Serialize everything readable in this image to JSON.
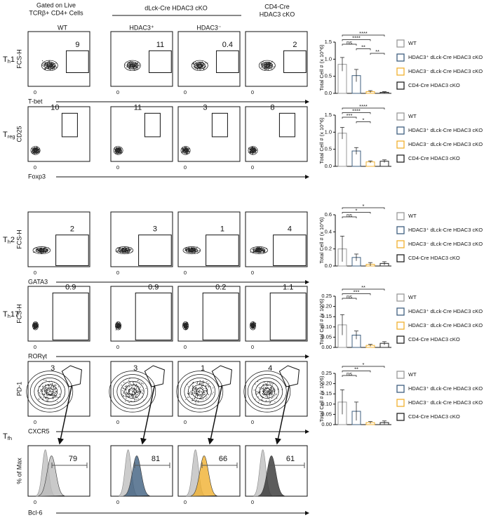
{
  "header": {
    "gated": [
      "Gated on Live",
      "TCRβ+ CD4+ Cells"
    ],
    "group": "dLck-Cre HDAC3 cKO",
    "columns": [
      "WT",
      "HDAC3⁺",
      "HDAC3⁻"
    ],
    "cd4": [
      "CD4-Cre",
      "HDAC3 cKO"
    ]
  },
  "zero_label": "0",
  "rows": [
    {
      "label": {
        "base": "T",
        "sub": "h",
        "suffix": "1"
      },
      "y_label": "FCS-H",
      "x_label": "T-bet",
      "gates": [
        9,
        11,
        0.4,
        2
      ]
    },
    {
      "label": {
        "base": "T",
        "sub": "reg"
      },
      "y_label": "CD25",
      "x_label": "Foxp3",
      "gates": [
        10,
        11,
        3,
        8
      ]
    },
    {
      "label": {
        "base": "T",
        "sub": "h",
        "suffix": "2"
      },
      "y_label": "FCS-H",
      "x_label": "GATA3",
      "gates": [
        2,
        3,
        1,
        4
      ]
    },
    {
      "label": {
        "base": "T",
        "sub": "h",
        "suffix": "17"
      },
      "y_label": "FCS-H",
      "x_label": "RORγt",
      "gates": [
        0.9,
        0.9,
        0.2,
        1.1
      ]
    },
    {
      "label": {
        "base": "T",
        "sub": "fh"
      },
      "y_label": "PD-1",
      "x_label": "CXCR5",
      "gates": [
        3,
        3,
        1,
        4
      ]
    }
  ],
  "histogram": {
    "y_label": "% of Max",
    "x_label": "Bcl-6",
    "gates": [
      79,
      81,
      66,
      61
    ]
  },
  "chart_data": [
    {
      "type": "bar",
      "y_label": "Total Cell # (x 10^6)",
      "categories": [
        "WT",
        "HDAC3⁺ dLck-Cre HDAC3 cKO",
        "HDAC3⁻ dLck-Cre HDAC3 cKO",
        "CD4-Cre HDAC3 cKO"
      ],
      "colors": [
        "#999999",
        "#3f5f7f",
        "#f0b030",
        "#222222"
      ],
      "values": [
        0.85,
        0.52,
        0.05,
        0.03
      ],
      "errors": [
        0.2,
        0.18,
        0.03,
        0.02
      ],
      "ylim": [
        0,
        1.5
      ],
      "yticks": [
        {
          "value": 0,
          "label": "0.0"
        },
        0.5,
        {
          "value": 1,
          "label": "1.0"
        },
        1.5
      ],
      "significance": [
        "****",
        "****",
        "ns",
        "**",
        "**"
      ]
    },
    {
      "type": "bar",
      "y_label": "Total Cell # (x 10^6)",
      "categories": [
        "WT",
        "HDAC3⁺ dLck-Cre HDAC3 cKO",
        "HDAC3⁻ dLck-Cre HDAC3 cKO",
        "CD4-Cre HDAC3 cKO"
      ],
      "colors": [
        "#999999",
        "#3f5f7f",
        "#f0b030",
        "#222222"
      ],
      "values": [
        0.97,
        0.45,
        0.13,
        0.15
      ],
      "errors": [
        0.17,
        0.1,
        0.03,
        0.04
      ],
      "ylim": [
        0,
        1.5
      ],
      "yticks": [
        {
          "value": 0,
          "label": "0.0"
        },
        0.5,
        {
          "value": 1,
          "label": "1.0"
        },
        1.5
      ],
      "significance": [
        "****",
        "****",
        "***",
        "*"
      ]
    },
    {
      "type": "bar",
      "y_label": "Total Cell # (x 10^6)",
      "categories": [
        "WT",
        "HDAC3⁺ dLck-Cre HDAC3 cKO",
        "HDAC3⁻ dLck-Cre HDAC3 cKO",
        "CD4-Cre HDAC3 cKO"
      ],
      "colors": [
        "#999999",
        "#3f5f7f",
        "#f0b030",
        "#222222"
      ],
      "values": [
        0.2,
        0.1,
        0.02,
        0.03
      ],
      "errors": [
        0.15,
        0.04,
        0.02,
        0.02
      ],
      "ylim": [
        0,
        0.6
      ],
      "yticks": [
        {
          "value": 0,
          "label": "0.0"
        },
        0.2,
        0.4,
        0.6
      ],
      "significance": [
        "*",
        "*",
        "ns"
      ]
    },
    {
      "type": "bar",
      "y_label": "Total Cell # (x 10^6)",
      "categories": [
        "WT",
        "HDAC3⁺ dLck-Cre HDAC3 cKO",
        "HDAC3⁻ dLck-Cre HDAC3 cKO",
        "CD4-Cre HDAC3 cKO"
      ],
      "colors": [
        "#999999",
        "#3f5f7f",
        "#f0b030",
        "#222222"
      ],
      "values": [
        0.11,
        0.06,
        0.01,
        0.02
      ],
      "errors": [
        0.05,
        0.02,
        0.005,
        0.008
      ],
      "ylim": [
        0,
        0.25
      ],
      "yticks": [
        {
          "value": 0,
          "label": "0.00"
        },
        {
          "value": 0.05,
          "label": "0.05"
        },
        {
          "value": 0.1,
          "label": "0.10"
        },
        {
          "value": 0.15,
          "label": "0.15"
        },
        {
          "value": 0.2,
          "label": "0.20"
        },
        {
          "value": 0.25,
          "label": "0.25"
        }
      ],
      "significance": [
        "**",
        "***",
        "ns"
      ]
    },
    {
      "type": "bar",
      "y_label": "Total Cell # (x 10^6)",
      "categories": [
        "WT",
        "HDAC3⁺ dLck-Cre HDAC3 cKO",
        "HDAC3⁻ dLck-Cre HDAC3 cKO",
        "CD4-Cre HDAC3 cKO"
      ],
      "colors": [
        "#999999",
        "#3f5f7f",
        "#f0b030",
        "#222222"
      ],
      "values": [
        0.11,
        0.065,
        0.01,
        0.01
      ],
      "errors": [
        0.06,
        0.045,
        0.005,
        0.008
      ],
      "ylim": [
        0,
        0.25
      ],
      "yticks": [
        {
          "value": 0,
          "label": "0.00"
        },
        {
          "value": 0.05,
          "label": "0.05"
        },
        {
          "value": 0.1,
          "label": "0.10"
        },
        {
          "value": 0.15,
          "label": "0.15"
        },
        {
          "value": 0.2,
          "label": "0.20"
        },
        {
          "value": 0.25,
          "label": "0.25"
        }
      ],
      "significance": [
        "*",
        "**",
        "ns"
      ]
    }
  ]
}
